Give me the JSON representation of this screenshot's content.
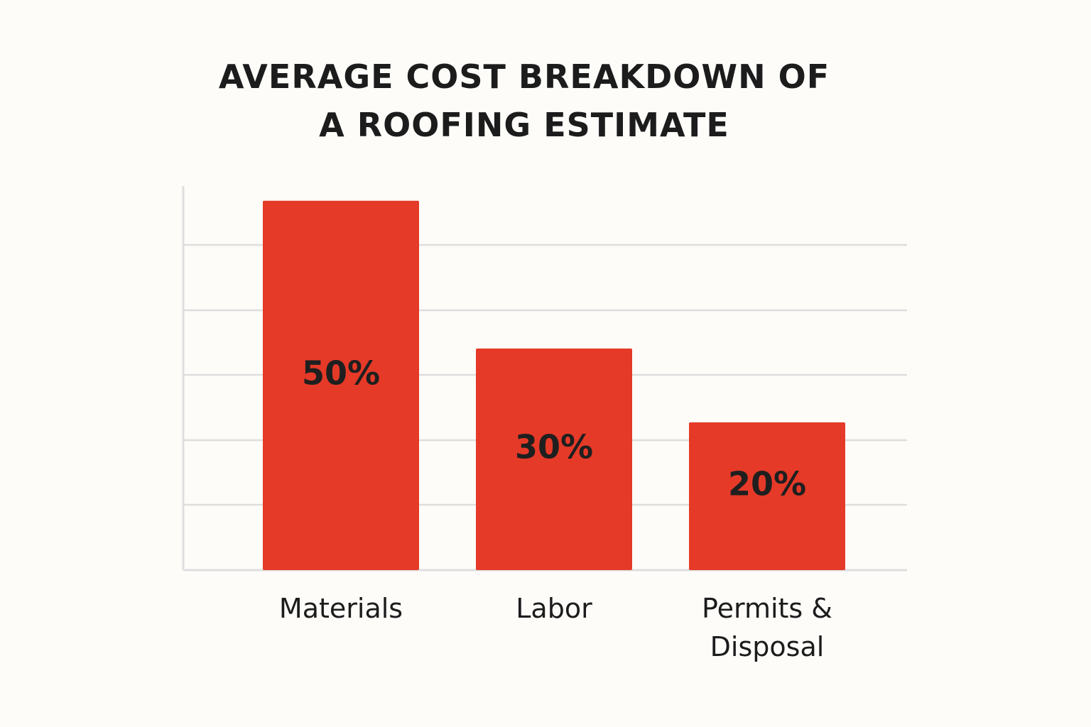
{
  "chart_data": {
    "type": "bar",
    "title": "AVERAGE COST BREAKDOWN OF A ROOFING ESTIMATE",
    "categories": [
      "Materials",
      "Labor",
      "Permits & Disposal"
    ],
    "values": [
      50,
      30,
      20
    ],
    "value_labels": [
      "50%",
      "30%",
      "20%"
    ],
    "color": "#e53a28",
    "ylim": [
      0,
      52
    ],
    "grid": true
  }
}
